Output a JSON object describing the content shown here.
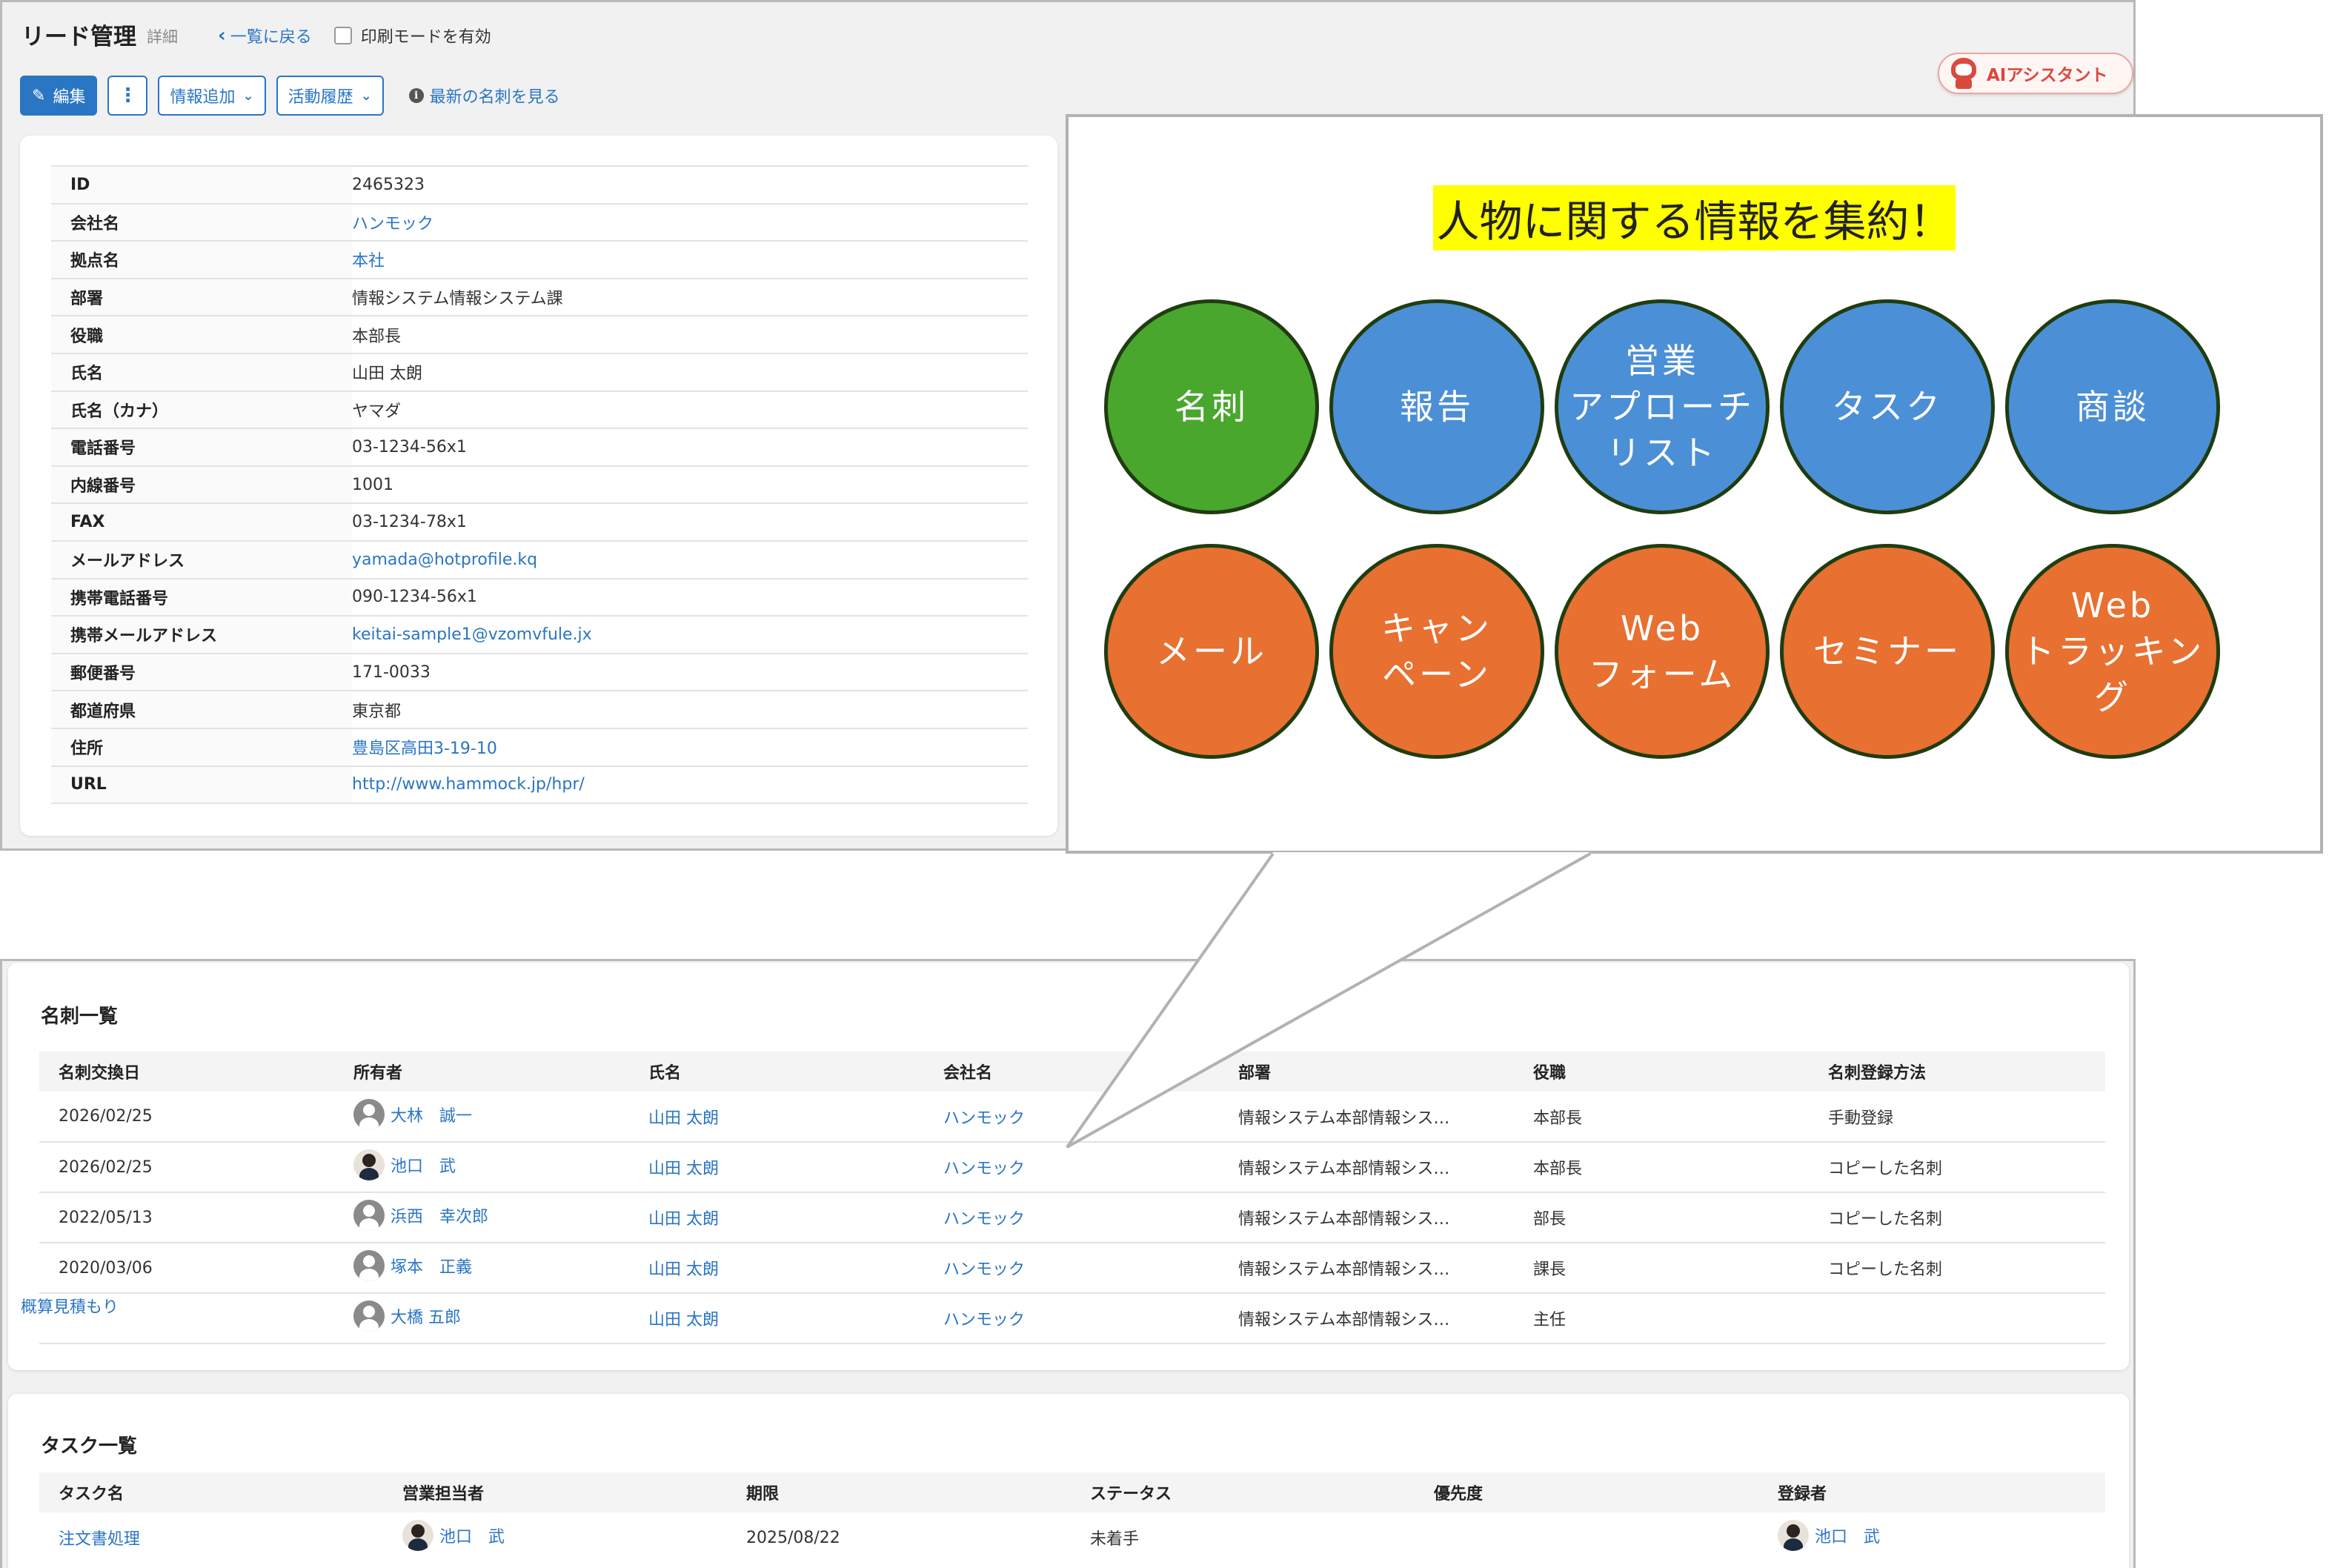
{
  "header": {
    "title": "リード管理",
    "subtitle": "詳細",
    "back_link": "一覧に戻る",
    "print_mode": "印刷モードを有効"
  },
  "toolbar": {
    "edit": "編集",
    "more": "⋮",
    "add_info": "情報追加",
    "activity_history": "活動履歴",
    "latest_card_link": "最新の名刺を見る"
  },
  "ai_assistant": {
    "label": "AIアシスタント"
  },
  "details": [
    {
      "label": "ID",
      "value": "2465323",
      "link": false
    },
    {
      "label": "会社名",
      "value": "ハンモック",
      "link": true
    },
    {
      "label": "拠点名",
      "value": "本社",
      "link": true
    },
    {
      "label": "部署",
      "value": "情報システム情報システム課",
      "link": false
    },
    {
      "label": "役職",
      "value": "本部長",
      "link": false
    },
    {
      "label": "氏名",
      "value": "山田 太朗",
      "link": false
    },
    {
      "label": "氏名（カナ）",
      "value": "ヤマダ",
      "link": false
    },
    {
      "label": "電話番号",
      "value": "03-1234-56x1",
      "link": false
    },
    {
      "label": "内線番号",
      "value": "1001",
      "link": false
    },
    {
      "label": "FAX",
      "value": "03-1234-78x1",
      "link": false
    },
    {
      "label": "メールアドレス",
      "value": "yamada@hotprofile.kq",
      "link": true
    },
    {
      "label": "携帯電話番号",
      "value": "090-1234-56x1",
      "link": false
    },
    {
      "label": "携帯メールアドレス",
      "value": "keitai-sample1@vzomvfule.jx",
      "link": true
    },
    {
      "label": "郵便番号",
      "value": "171-0033",
      "link": false
    },
    {
      "label": "都道府県",
      "value": "東京都",
      "link": false
    },
    {
      "label": "住所",
      "value": "豊島区高田3-19-10",
      "link": true
    },
    {
      "label": "URL",
      "value": "http://www.hammock.jp/hpr/",
      "link": true
    }
  ],
  "callout": {
    "title": "人物に関する情報を集約！",
    "circles": [
      {
        "label": "名刺",
        "color": "#4aa72e"
      },
      {
        "label": "報告",
        "color": "#4b8fd6"
      },
      {
        "label": "営業\nアプローチ\nリスト",
        "color": "#4b8fd6"
      },
      {
        "label": "タスク",
        "color": "#4b8fd6"
      },
      {
        "label": "商談",
        "color": "#4b8fd6"
      },
      {
        "label": "メール",
        "color": "#e87030"
      },
      {
        "label": "キャン\nペーン",
        "color": "#e87030"
      },
      {
        "label": "Web\nフォーム",
        "color": "#e87030"
      },
      {
        "label": "セミナー",
        "color": "#e87030"
      },
      {
        "label": "Web\nトラッキング",
        "color": "#e87030"
      }
    ]
  },
  "business_cards": {
    "title": "名刺一覧",
    "columns": [
      "名刺交換日",
      "所有者",
      "氏名",
      "会社名",
      "部署",
      "役職",
      "名刺登録方法"
    ],
    "rows": [
      {
        "date": "2026/02/25",
        "owner": "大林　誠一",
        "avatar": "silhouette",
        "name": "山田 太朗",
        "company": "ハンモック",
        "dept": "情報システム本部情報シス…",
        "position": "本部長",
        "method": "手動登録"
      },
      {
        "date": "2026/02/25",
        "owner": "池口　武",
        "avatar": "photo",
        "name": "山田 太朗",
        "company": "ハンモック",
        "dept": "情報システム本部情報シス…",
        "position": "本部長",
        "method": "コピーした名刺"
      },
      {
        "date": "2022/05/13",
        "owner": "浜西　幸次郎",
        "avatar": "silhouette",
        "name": "山田 太朗",
        "company": "ハンモック",
        "dept": "情報システム本部情報シス…",
        "position": "部長",
        "method": "コピーした名刺"
      },
      {
        "date": "2020/03/06",
        "owner": "塚本　正義",
        "avatar": "silhouette",
        "name": "山田 太朗",
        "company": "ハンモック",
        "dept": "情報システム本部情報シス…",
        "position": "課長",
        "method": "コピーした名刺"
      },
      {
        "date": "",
        "owner": "大橋 五郎",
        "avatar": "silhouette",
        "name": "山田 太朗",
        "company": "ハンモック",
        "dept": "情報システム本部情報シス…",
        "position": "主任",
        "method": ""
      }
    ]
  },
  "estimate_link": "概算見積もり",
  "tasks": {
    "title": "タスク一覧",
    "columns": [
      "タスク名",
      "営業担当者",
      "期限",
      "ステータス",
      "優先度",
      "登録者"
    ],
    "rows": [
      {
        "task": "注文書処理",
        "assignee": "池口　武",
        "due": "2025/08/22",
        "status": "未着手",
        "priority": "",
        "registrant": "池口　武"
      }
    ]
  }
}
